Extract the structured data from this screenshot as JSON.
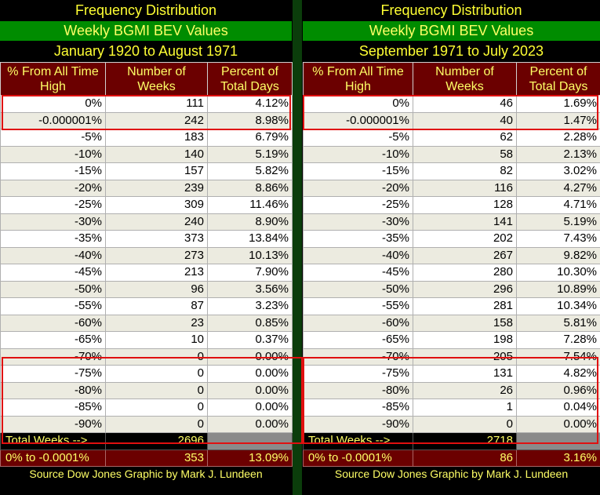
{
  "left": {
    "title": "Frequency Distribution",
    "subtitle": "Weekly BGMI BEV Values",
    "period": "January 1920 to August 1971",
    "headers": [
      "% From All Time High",
      "Number of Weeks",
      "Percent of Total Days"
    ],
    "rows": [
      [
        "0%",
        "111",
        "4.12%"
      ],
      [
        "-0.000001%",
        "242",
        "8.98%"
      ],
      [
        "-5%",
        "183",
        "6.79%"
      ],
      [
        "-10%",
        "140",
        "5.19%"
      ],
      [
        "-15%",
        "157",
        "5.82%"
      ],
      [
        "-20%",
        "239",
        "8.86%"
      ],
      [
        "-25%",
        "309",
        "11.46%"
      ],
      [
        "-30%",
        "240",
        "8.90%"
      ],
      [
        "-35%",
        "373",
        "13.84%"
      ],
      [
        "-40%",
        "273",
        "10.13%"
      ],
      [
        "-45%",
        "213",
        "7.90%"
      ],
      [
        "-50%",
        "96",
        "3.56%"
      ],
      [
        "-55%",
        "87",
        "3.23%"
      ],
      [
        "-60%",
        "23",
        "0.85%"
      ],
      [
        "-65%",
        "10",
        "0.37%"
      ],
      [
        "-70%",
        "0",
        "0.00%"
      ],
      [
        "-75%",
        "0",
        "0.00%"
      ],
      [
        "-80%",
        "0",
        "0.00%"
      ],
      [
        "-85%",
        "0",
        "0.00%"
      ],
      [
        "-90%",
        "0",
        "0.00%"
      ]
    ],
    "total_label": "Total Weeks -->",
    "total_value": "2696",
    "sum_label": "0% to -0.0001%",
    "sum_weeks": "353",
    "sum_percent": "13.09%",
    "source": "Source Dow Jones   Graphic by Mark J. Lundeen"
  },
  "right": {
    "title": "Frequency Distribution",
    "subtitle": "Weekly BGMI BEV Values",
    "period": "September 1971 to July 2023",
    "headers": [
      "% From All Time High",
      "Number of Weeks",
      "Percent of Total Days"
    ],
    "rows": [
      [
        "0%",
        "46",
        "1.69%"
      ],
      [
        "-0.000001%",
        "40",
        "1.47%"
      ],
      [
        "-5%",
        "62",
        "2.28%"
      ],
      [
        "-10%",
        "58",
        "2.13%"
      ],
      [
        "-15%",
        "82",
        "3.02%"
      ],
      [
        "-20%",
        "116",
        "4.27%"
      ],
      [
        "-25%",
        "128",
        "4.71%"
      ],
      [
        "-30%",
        "141",
        "5.19%"
      ],
      [
        "-35%",
        "202",
        "7.43%"
      ],
      [
        "-40%",
        "267",
        "9.82%"
      ],
      [
        "-45%",
        "280",
        "10.30%"
      ],
      [
        "-50%",
        "296",
        "10.89%"
      ],
      [
        "-55%",
        "281",
        "10.34%"
      ],
      [
        "-60%",
        "158",
        "5.81%"
      ],
      [
        "-65%",
        "198",
        "7.28%"
      ],
      [
        "-70%",
        "205",
        "7.54%"
      ],
      [
        "-75%",
        "131",
        "4.82%"
      ],
      [
        "-80%",
        "26",
        "0.96%"
      ],
      [
        "-85%",
        "1",
        "0.04%"
      ],
      [
        "-90%",
        "0",
        "0.00%"
      ]
    ],
    "total_label": "Total Weeks -->",
    "total_value": "2718",
    "sum_label": "0% to -0.0001%",
    "sum_weeks": "86",
    "sum_percent": "3.16%",
    "source": "Source Dow Jones   Graphic by Mark J. Lundeen"
  },
  "colors": {
    "title_text": "#ffff33",
    "subtitle_bg": "#008c00",
    "header_bg": "#6b0000",
    "highlight": "#e01010",
    "divider": "#0b3d0b"
  },
  "chart_data": [
    {
      "type": "table",
      "title": "Frequency Distribution",
      "subtitle": "Weekly BGMI BEV Values",
      "period": "January 1920 to August 1971",
      "columns": [
        "% From All Time High",
        "Number of Weeks",
        "Percent of Total Days"
      ],
      "categories": [
        "0%",
        "-0.000001%",
        "-5%",
        "-10%",
        "-15%",
        "-20%",
        "-25%",
        "-30%",
        "-35%",
        "-40%",
        "-45%",
        "-50%",
        "-55%",
        "-60%",
        "-65%",
        "-70%",
        "-75%",
        "-80%",
        "-85%",
        "-90%"
      ],
      "series": [
        {
          "name": "Number of Weeks",
          "values": [
            111,
            242,
            183,
            140,
            157,
            239,
            309,
            240,
            373,
            273,
            213,
            96,
            87,
            23,
            10,
            0,
            0,
            0,
            0,
            0
          ]
        },
        {
          "name": "Percent of Total Days",
          "values": [
            4.12,
            8.98,
            6.79,
            5.19,
            5.82,
            8.86,
            11.46,
            8.9,
            13.84,
            10.13,
            7.9,
            3.56,
            3.23,
            0.85,
            0.37,
            0.0,
            0.0,
            0.0,
            0.0,
            0.0
          ]
        }
      ],
      "total_weeks": 2696,
      "sum_0_to_0001": {
        "weeks": 353,
        "percent": 13.09
      }
    },
    {
      "type": "table",
      "title": "Frequency Distribution",
      "subtitle": "Weekly BGMI BEV Values",
      "period": "September 1971 to July 2023",
      "columns": [
        "% From All Time High",
        "Number of Weeks",
        "Percent of Total Days"
      ],
      "categories": [
        "0%",
        "-0.000001%",
        "-5%",
        "-10%",
        "-15%",
        "-20%",
        "-25%",
        "-30%",
        "-35%",
        "-40%",
        "-45%",
        "-50%",
        "-55%",
        "-60%",
        "-65%",
        "-70%",
        "-75%",
        "-80%",
        "-85%",
        "-90%"
      ],
      "series": [
        {
          "name": "Number of Weeks",
          "values": [
            46,
            40,
            62,
            58,
            82,
            116,
            128,
            141,
            202,
            267,
            280,
            296,
            281,
            158,
            198,
            205,
            131,
            26,
            1,
            0
          ]
        },
        {
          "name": "Percent of Total Days",
          "values": [
            1.69,
            1.47,
            2.28,
            2.13,
            3.02,
            4.27,
            4.71,
            5.19,
            7.43,
            9.82,
            10.3,
            10.89,
            10.34,
            5.81,
            7.28,
            7.54,
            4.82,
            0.96,
            0.04,
            0.0
          ]
        }
      ],
      "total_weeks": 2718,
      "sum_0_to_0001": {
        "weeks": 86,
        "percent": 3.16
      }
    }
  ]
}
